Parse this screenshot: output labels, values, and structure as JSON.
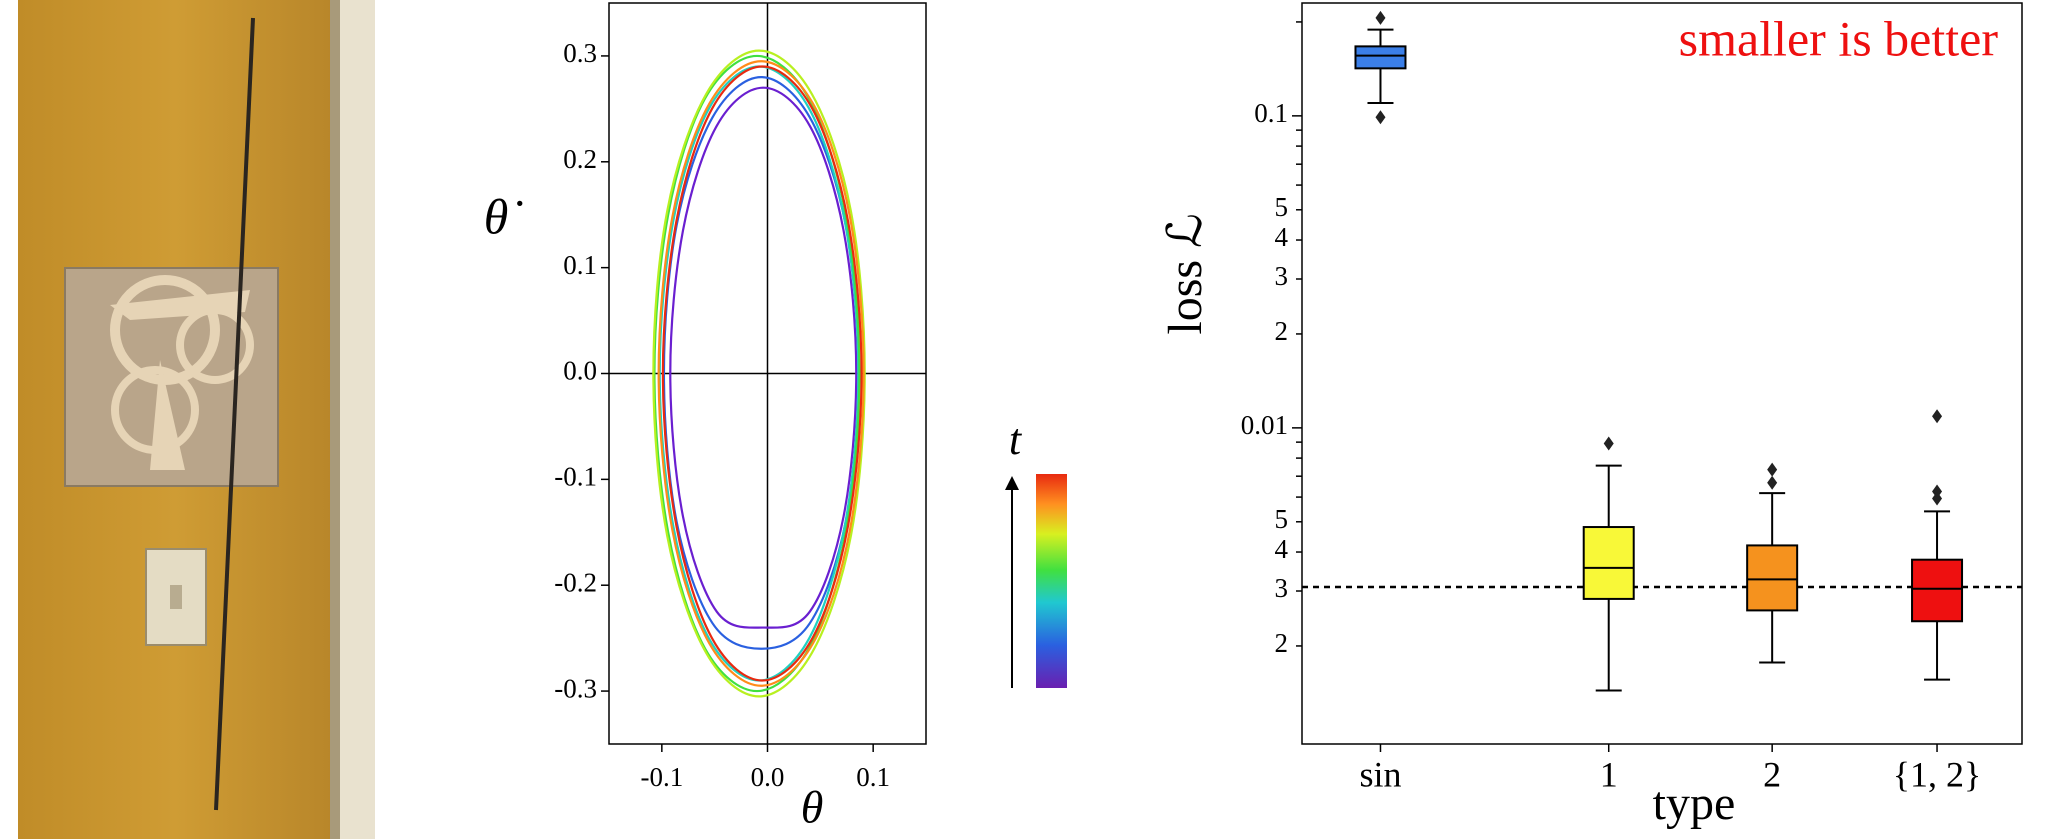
{
  "chart_data": [
    {
      "type": "line",
      "xlabel": "θ",
      "ylabel": "θ̇",
      "xlim": [
        -0.15,
        0.15
      ],
      "ylim": [
        -0.35,
        0.35
      ],
      "xticks": [
        -0.1,
        {
          "value": 0,
          "label": "0.0"
        },
        0.1
      ],
      "yticks": [
        -0.3,
        -0.2,
        -0.1,
        {
          "value": 0,
          "label": "0.0"
        },
        0.1,
        0.2,
        0.3
      ],
      "colorbar": {
        "label": "t"
      },
      "series": [
        {
          "color": "#6a1fd0",
          "x": [
            0.084,
            0.072,
            0.04,
            -0.004,
            -0.048,
            -0.08,
            -0.092,
            -0.08,
            -0.048,
            -0.004,
            0.04,
            0.072,
            0.084
          ],
          "values": [
            0,
            0.135,
            0.234,
            0.27,
            0.234,
            0.135,
            0,
            -0.135,
            -0.225,
            -0.24,
            -0.225,
            -0.135,
            0
          ]
        },
        {
          "color": "#2a60e0",
          "x": [
            0.086,
            0.074,
            0.04,
            -0.006,
            -0.052,
            -0.086,
            -0.098,
            -0.086,
            -0.052,
            -0.006,
            0.04,
            0.074,
            0.086
          ],
          "values": [
            0,
            0.14,
            0.242,
            0.28,
            0.242,
            0.14,
            0,
            -0.14,
            -0.236,
            -0.26,
            -0.236,
            -0.14,
            0
          ]
        },
        {
          "color": "#20d0c0",
          "x": [
            0.086,
            0.073,
            0.039,
            -0.008,
            -0.055,
            -0.089,
            -0.102,
            -0.089,
            -0.055,
            -0.008,
            0.039,
            0.073,
            0.086
          ],
          "values": [
            0,
            0.145,
            0.251,
            0.29,
            0.251,
            0.145,
            0,
            -0.145,
            -0.251,
            -0.29,
            -0.251,
            -0.145,
            0
          ]
        },
        {
          "color": "#40e040",
          "x": [
            0.087,
            0.074,
            0.039,
            -0.01,
            -0.059,
            -0.094,
            -0.107,
            -0.094,
            -0.059,
            -0.01,
            0.039,
            0.074,
            0.087
          ],
          "values": [
            0,
            0.15,
            0.26,
            0.3,
            0.26,
            0.15,
            0,
            -0.15,
            -0.26,
            -0.3,
            -0.26,
            -0.15,
            0
          ]
        },
        {
          "color": "#b8f020",
          "x": [
            0.092,
            0.079,
            0.042,
            -0.008,
            -0.058,
            -0.095,
            -0.108,
            -0.095,
            -0.058,
            -0.008,
            0.042,
            0.079,
            0.092
          ],
          "values": [
            0,
            0.153,
            0.264,
            0.305,
            0.264,
            0.153,
            0,
            -0.153,
            -0.264,
            -0.305,
            -0.264,
            -0.153,
            0
          ]
        },
        {
          "color": "#ff8c1a",
          "x": [
            0.091,
            0.078,
            0.043,
            -0.006,
            -0.055,
            -0.09,
            -0.103,
            -0.09,
            -0.055,
            -0.006,
            0.043,
            0.078,
            0.091
          ],
          "values": [
            0,
            0.148,
            0.255,
            0.295,
            0.255,
            0.148,
            0,
            -0.148,
            -0.255,
            -0.295,
            -0.255,
            -0.148,
            0
          ]
        },
        {
          "color": "#e82a10",
          "x": [
            0.089,
            0.076,
            0.042,
            -0.005,
            -0.052,
            -0.086,
            -0.099,
            -0.086,
            -0.052,
            -0.005,
            0.042,
            0.076,
            0.089
          ],
          "values": [
            0,
            0.145,
            0.251,
            0.29,
            0.251,
            0.145,
            0,
            -0.145,
            -0.251,
            -0.29,
            -0.251,
            -0.145,
            0
          ]
        }
      ]
    },
    {
      "type": "box",
      "annotation": "smaller is better",
      "xlabel": "type",
      "ylabel": "loss ℒ",
      "log_y": true,
      "ylim": [
        0.00097,
        0.23
      ],
      "yticks": [
        0.1,
        0.01,
        {
          "value": 0.05,
          "label": "5"
        },
        {
          "value": 0.04,
          "label": "4"
        },
        {
          "value": 0.03,
          "label": "3"
        },
        {
          "value": 0.02,
          "label": "2"
        },
        {
          "value": 0.005,
          "label": "5"
        },
        {
          "value": 0.004,
          "label": "4"
        },
        {
          "value": 0.003,
          "label": "3"
        },
        {
          "value": 0.002,
          "label": "2"
        }
      ],
      "minor_yticks": [
        0.2,
        0.09,
        0.08,
        0.07,
        0.06,
        0.009,
        0.008,
        0.007,
        0.006
      ],
      "reference_line": 0.00309,
      "categories": [
        "sin",
        "1",
        "2",
        "{1, 2}"
      ],
      "boxes": [
        {
          "color": "#3b7fe8",
          "whisker_low": 0.11,
          "q1": 0.142,
          "median": 0.156,
          "q3": 0.167,
          "whisker_high": 0.189,
          "outliers": [
            0.206,
            0.099
          ]
        },
        {
          "color": "#f8f838",
          "whisker_low": 0.00144,
          "q1": 0.00283,
          "median": 0.00356,
          "q3": 0.00481,
          "whisker_high": 0.00757,
          "outliers": [
            0.00891
          ]
        },
        {
          "color": "#f5921e",
          "whisker_low": 0.00177,
          "q1": 0.0026,
          "median": 0.00327,
          "q3": 0.0042,
          "whisker_high": 0.00618,
          "outliers": [
            0.00735,
            0.00667
          ]
        },
        {
          "color": "#ee1010",
          "whisker_low": 0.00156,
          "q1": 0.0024,
          "median": 0.00305,
          "q3": 0.00378,
          "whisker_high": 0.0054,
          "outliers": [
            0.0109,
            0.00625,
            0.00594
          ]
        }
      ]
    }
  ]
}
